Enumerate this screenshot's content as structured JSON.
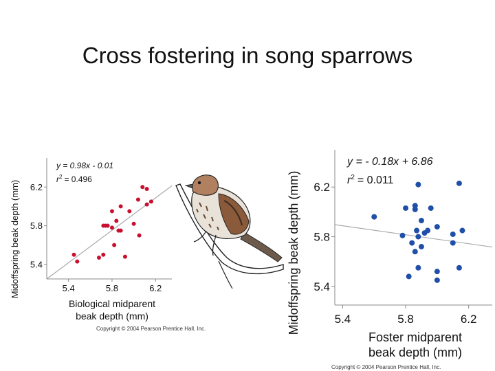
{
  "slide": {
    "title": "Cross fostering in song sparrows"
  },
  "chart_data": [
    {
      "type": "scatter",
      "name": "biological",
      "xlabel": [
        "Biological midparent",
        "beak depth (mm)"
      ],
      "ylabel": "Midoffspring beak depth (mm)",
      "equation": "y = 0.98x - 0.01",
      "r2_label": "r",
      "r2_sup": "2",
      "r2_value": "= 0.496",
      "slope": 0.98,
      "intercept": -0.01,
      "xlim": [
        5.2,
        6.35
      ],
      "ylim": [
        5.25,
        6.5
      ],
      "x_ticks": [
        5.4,
        5.8,
        6.2
      ],
      "x_tick_labels": [
        "5.4",
        "5.8",
        "6.2"
      ],
      "y_ticks": [
        5.4,
        5.8,
        6.2
      ],
      "y_tick_labels": [
        "5.4",
        "5.8",
        "6.2"
      ],
      "point_color": "#c8102e",
      "line_color": "#aaaaaa",
      "points": [
        [
          5.45,
          5.5
        ],
        [
          5.48,
          5.43
        ],
        [
          5.68,
          5.47
        ],
        [
          5.72,
          5.5
        ],
        [
          5.72,
          5.8
        ],
        [
          5.74,
          5.8
        ],
        [
          5.76,
          5.8
        ],
        [
          5.8,
          5.78
        ],
        [
          5.8,
          5.95
        ],
        [
          5.82,
          5.6
        ],
        [
          5.84,
          5.85
        ],
        [
          5.86,
          5.75
        ],
        [
          5.88,
          5.75
        ],
        [
          5.88,
          6.0
        ],
        [
          5.92,
          5.48
        ],
        [
          5.96,
          5.95
        ],
        [
          6.0,
          5.82
        ],
        [
          6.04,
          6.07
        ],
        [
          6.05,
          5.7
        ],
        [
          6.08,
          6.2
        ],
        [
          6.12,
          6.18
        ],
        [
          6.12,
          6.02
        ],
        [
          6.16,
          6.05
        ]
      ],
      "copyright": "Copyright © 2004 Pearson Prentice Hall, Inc."
    },
    {
      "type": "scatter",
      "name": "foster",
      "xlabel": [
        "Foster midparent",
        "beak depth (mm)"
      ],
      "ylabel": "Midoffspring beak depth (mm)",
      "equation": "y = - 0.18x + 6.86",
      "r2_label": "r",
      "r2_sup": "2",
      "r2_value": "= 0.011",
      "slope": -0.18,
      "intercept": 6.86,
      "xlim": [
        5.35,
        6.35
      ],
      "ylim": [
        5.25,
        6.5
      ],
      "x_ticks": [
        5.4,
        5.8,
        6.2
      ],
      "x_tick_labels": [
        "5.4",
        "5.8",
        "6.2"
      ],
      "y_ticks": [
        5.4,
        5.8,
        6.2
      ],
      "y_tick_labels": [
        "5.4",
        "5.8",
        "6.2"
      ],
      "point_color": "#1f4fa8",
      "line_color": "#aaaaaa",
      "points": [
        [
          5.6,
          5.96
        ],
        [
          5.78,
          5.81
        ],
        [
          5.8,
          6.03
        ],
        [
          5.82,
          5.48
        ],
        [
          5.84,
          5.75
        ],
        [
          5.86,
          6.05
        ],
        [
          5.86,
          6.02
        ],
        [
          5.88,
          6.22
        ],
        [
          5.87,
          5.85
        ],
        [
          5.88,
          5.55
        ],
        [
          5.88,
          5.8
        ],
        [
          5.9,
          5.93
        ],
        [
          5.9,
          5.72
        ],
        [
          5.92,
          5.83
        ],
        [
          5.94,
          5.85
        ],
        [
          5.96,
          6.03
        ],
        [
          6.0,
          5.88
        ],
        [
          6.0,
          5.52
        ],
        [
          6.0,
          5.45
        ],
        [
          6.1,
          5.75
        ],
        [
          6.1,
          5.82
        ],
        [
          6.14,
          6.23
        ],
        [
          6.14,
          5.55
        ],
        [
          6.16,
          5.85
        ],
        [
          5.86,
          5.68
        ]
      ],
      "copyright": "Copyright © 2004 Pearson Prentice Hall, Inc."
    }
  ]
}
